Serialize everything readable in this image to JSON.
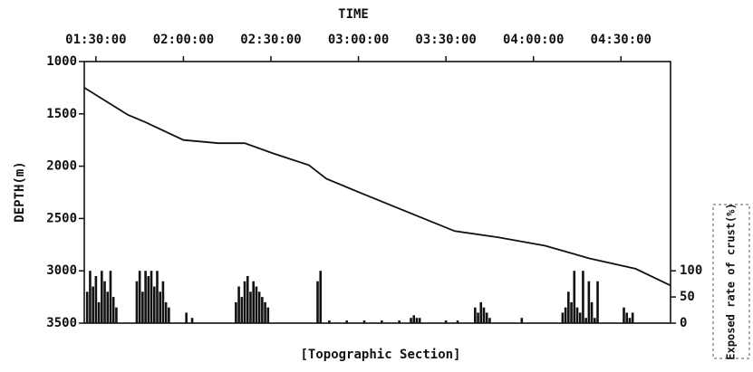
{
  "chart_data": {
    "type": "line",
    "title": "TIME",
    "y_label": "DEPTH(m)",
    "y2_label": "Exposed rate of crust(%)",
    "caption": "[Topographic Section]",
    "xlim": [
      86,
      287
    ],
    "xticks": [
      {
        "value": 90,
        "label": "01:30:00"
      },
      {
        "value": 120,
        "label": "02:00:00"
      },
      {
        "value": 150,
        "label": "02:30:00"
      },
      {
        "value": 180,
        "label": "03:00:00"
      },
      {
        "value": 210,
        "label": "03:30:00"
      },
      {
        "value": 240,
        "label": "04:00:00"
      },
      {
        "value": 270,
        "label": "04:30:00"
      }
    ],
    "ylim": [
      3500,
      1000
    ],
    "yticks": [
      1000,
      1500,
      2000,
      2500,
      3000,
      3500
    ],
    "y2lim": [
      0,
      500
    ],
    "y2ticks": [
      0,
      50,
      100
    ],
    "series": [
      {
        "type": "line",
        "color": "#111111",
        "x": [
          86,
          101,
          107,
          120,
          132,
          141,
          151,
          163,
          169,
          182,
          197,
          213,
          228,
          244,
          259,
          275,
          287
        ],
        "values": [
          1250,
          1510,
          1580,
          1750,
          1780,
          1780,
          1880,
          1990,
          2120,
          2270,
          2440,
          2620,
          2680,
          2760,
          2880,
          2980,
          3140
        ]
      },
      {
        "type": "bar",
        "axis": "y2",
        "color": "#111111",
        "x": [
          87,
          88,
          89,
          90,
          91,
          92,
          93,
          94,
          95,
          96,
          97,
          104,
          105,
          106,
          107,
          108,
          109,
          110,
          111,
          112,
          113,
          114,
          115,
          121,
          123,
          138,
          139,
          140,
          141,
          142,
          143,
          144,
          145,
          146,
          147,
          148,
          149,
          166,
          167,
          170,
          176,
          182,
          188,
          194,
          198,
          199,
          200,
          201,
          210,
          214,
          220,
          221,
          222,
          223,
          224,
          225,
          236,
          250,
          251,
          252,
          253,
          254,
          255,
          256,
          257,
          258,
          259,
          260,
          261,
          262,
          271,
          272,
          273,
          274
        ],
        "values": [
          60,
          100,
          70,
          90,
          40,
          100,
          80,
          60,
          100,
          50,
          30,
          80,
          100,
          60,
          100,
          90,
          100,
          70,
          100,
          60,
          80,
          40,
          30,
          20,
          10,
          40,
          70,
          50,
          80,
          90,
          60,
          80,
          70,
          60,
          50,
          40,
          30,
          80,
          100,
          5,
          5,
          5,
          5,
          5,
          10,
          15,
          10,
          10,
          5,
          5,
          30,
          20,
          40,
          30,
          20,
          10,
          10,
          20,
          30,
          60,
          40,
          100,
          30,
          20,
          100,
          10,
          80,
          40,
          10,
          80,
          30,
          20,
          10,
          20
        ]
      }
    ]
  }
}
